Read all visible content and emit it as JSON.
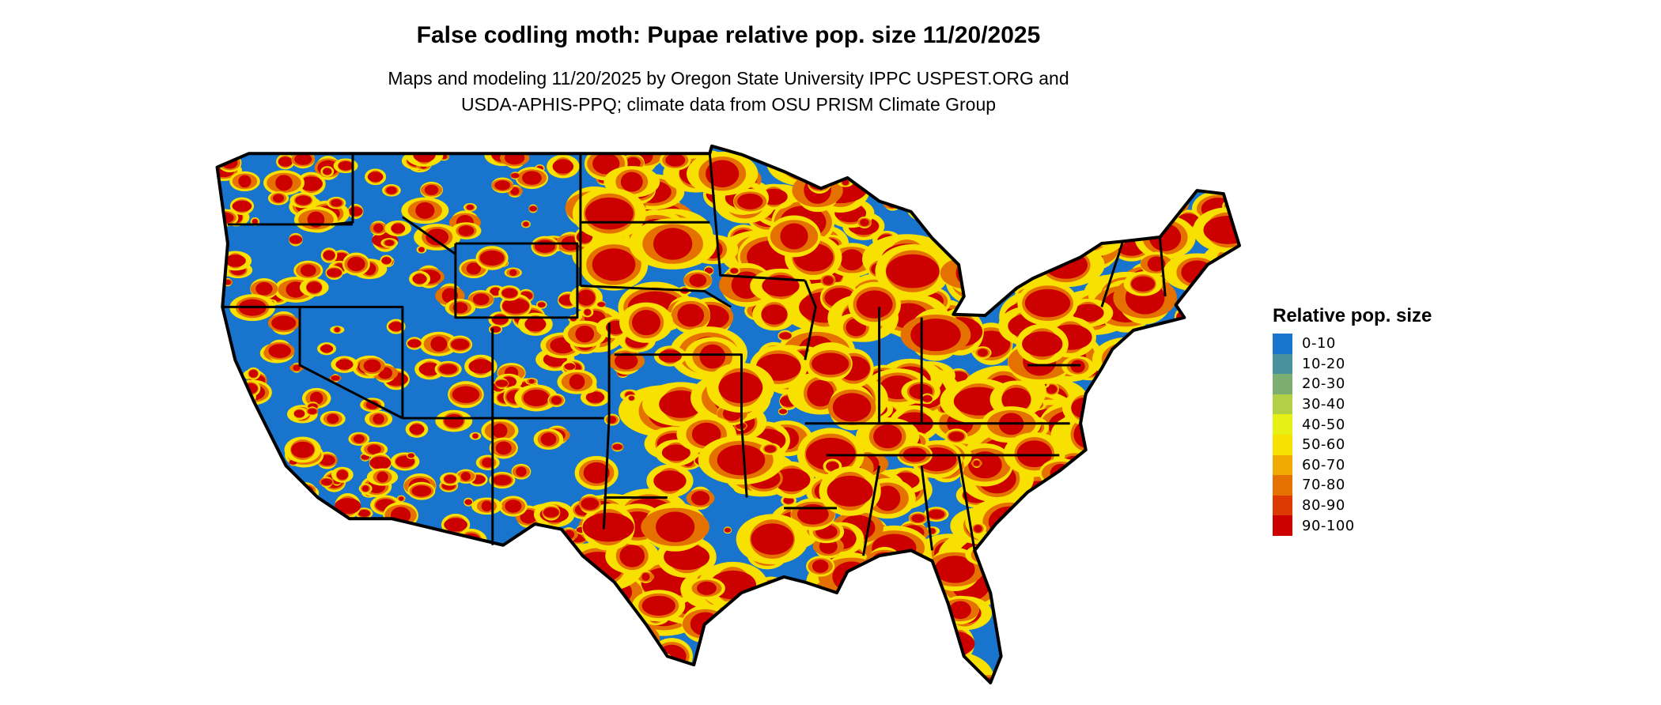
{
  "title": "False codling moth: Pupae relative pop. size 11/20/2025",
  "subtitle_lines": [
    "Maps and modeling 11/20/2025 by Oregon State University IPPC USPEST.ORG and",
    "USDA-APHIS-PPQ; climate data from OSU PRISM Climate Group"
  ],
  "legend": {
    "title": "Relative pop. size",
    "items": [
      {
        "label": "0-10",
        "color": "#1874CD"
      },
      {
        "label": "10-20",
        "color": "#4A919E"
      },
      {
        "label": "20-30",
        "color": "#7CAE72"
      },
      {
        "label": "30-40",
        "color": "#B2D045"
      },
      {
        "label": "40-50",
        "color": "#E6F014"
      },
      {
        "label": "50-60",
        "color": "#F8E000"
      },
      {
        "label": "60-70",
        "color": "#EEAA00"
      },
      {
        "label": "70-80",
        "color": "#E57200"
      },
      {
        "label": "80-90",
        "color": "#DC3A00"
      },
      {
        "label": "90-100",
        "color": "#CD0000"
      }
    ]
  },
  "map": {
    "region": "Contiguous United States",
    "borders": "state boundaries",
    "border_color": "#000000"
  }
}
